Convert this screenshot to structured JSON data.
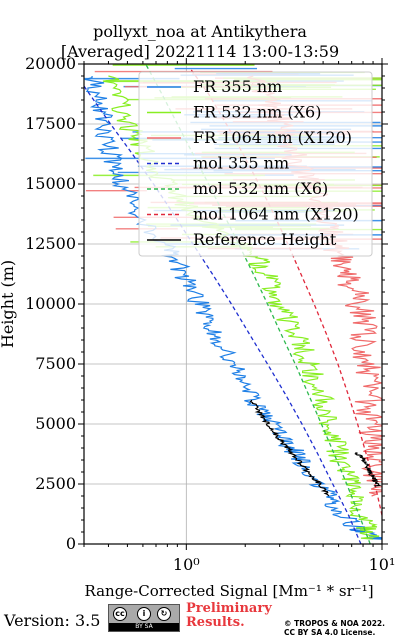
{
  "chart_data": {
    "type": "line",
    "title": "pollyxt_noa at Antikythera",
    "subtitle": "[Averaged] 20221114 13:00-13:59",
    "xlabel": "Range-Corrected Signal [Mm⁻¹ * sr⁻¹]",
    "ylabel": "Height (m)",
    "xscale": "log",
    "xlim": [
      0.3,
      10
    ],
    "ylim": [
      0,
      20000
    ],
    "grid": true,
    "legend_position": "top-right",
    "x_tick_labels": [
      "10⁰",
      "10¹"
    ],
    "x_tick_values": [
      1,
      10
    ],
    "y_ticks": [
      0,
      2500,
      5000,
      7500,
      10000,
      12500,
      15000,
      17500,
      20000
    ],
    "series": [
      {
        "name": "FR 355 nm",
        "color": "#1e7fe6",
        "style": "solid",
        "noisy": true,
        "points": [
          [
            9.5,
            200
          ],
          [
            7.5,
            600
          ],
          [
            6.0,
            1400
          ],
          [
            5.3,
            2000
          ],
          [
            4.5,
            2800
          ],
          [
            3.8,
            3600
          ],
          [
            3.2,
            4300
          ],
          [
            2.7,
            5000
          ],
          [
            2.3,
            5800
          ],
          [
            2.0,
            6600
          ],
          [
            1.75,
            7400
          ],
          [
            1.55,
            8200
          ],
          [
            1.35,
            9000
          ],
          [
            1.2,
            9800
          ],
          [
            1.05,
            10700
          ],
          [
            0.92,
            11500
          ],
          [
            0.8,
            12300
          ],
          [
            0.6,
            13500
          ],
          [
            0.5,
            14500
          ],
          [
            0.45,
            15500
          ],
          [
            0.4,
            16500
          ],
          [
            0.38,
            17500
          ],
          [
            0.35,
            18500
          ],
          [
            0.33,
            19500
          ]
        ]
      },
      {
        "name": "FR 532 nm (X6)",
        "color": "#88ee22",
        "style": "solid",
        "noisy": true,
        "points": [
          [
            9.0,
            200
          ],
          [
            8.3,
            800
          ],
          [
            7.6,
            1600
          ],
          [
            7.0,
            2300
          ],
          [
            6.5,
            3000
          ],
          [
            6.0,
            3800
          ],
          [
            5.6,
            4700
          ],
          [
            5.2,
            5600
          ],
          [
            4.7,
            6500
          ],
          [
            4.3,
            7400
          ],
          [
            3.9,
            8200
          ],
          [
            3.5,
            9000
          ],
          [
            3.1,
            9800
          ],
          [
            2.8,
            10700
          ],
          [
            2.5,
            11500
          ],
          [
            2.2,
            12000
          ],
          [
            1.9,
            12500
          ],
          [
            1.2,
            13500
          ],
          [
            0.9,
            14500
          ],
          [
            0.7,
            15500
          ],
          [
            0.6,
            16500
          ],
          [
            0.5,
            17500
          ],
          [
            0.45,
            18500
          ],
          [
            0.4,
            19500
          ]
        ]
      },
      {
        "name": "FR 1064 nm (X120)",
        "color": "#f06b6b",
        "style": "solid",
        "noisy": true,
        "points": [
          [
            9.8,
            2000
          ],
          [
            9.5,
            3000
          ],
          [
            9.2,
            4000
          ],
          [
            8.8,
            5000
          ],
          [
            8.6,
            6000
          ],
          [
            8.5,
            7000
          ],
          [
            8.3,
            8000
          ],
          [
            8.0,
            9000
          ],
          [
            7.6,
            10000
          ],
          [
            7.0,
            10800
          ],
          [
            6.5,
            11500
          ],
          [
            6.0,
            12200
          ],
          [
            5.5,
            12800
          ],
          [
            5.0,
            13500
          ],
          [
            4.5,
            14500
          ],
          [
            4.0,
            15500
          ],
          [
            3.5,
            16500
          ],
          [
            3.0,
            17500
          ],
          [
            2.6,
            18500
          ],
          [
            2.2,
            19500
          ]
        ]
      },
      {
        "name": "mol 355 nm",
        "color": "#1f2fd0",
        "style": "dashed",
        "noisy": false,
        "points": [
          [
            7.8,
            0
          ],
          [
            6.7,
            1250
          ],
          [
            5.6,
            2500
          ],
          [
            4.7,
            3750
          ],
          [
            3.9,
            5000
          ],
          [
            3.2,
            6250
          ],
          [
            2.6,
            7500
          ],
          [
            2.1,
            8750
          ],
          [
            1.7,
            10000
          ],
          [
            1.36,
            11250
          ],
          [
            1.08,
            12500
          ],
          [
            0.86,
            13750
          ],
          [
            0.68,
            15000
          ],
          [
            0.53,
            16250
          ],
          [
            0.41,
            17500
          ],
          [
            0.32,
            18750
          ],
          [
            0.25,
            20000
          ]
        ]
      },
      {
        "name": "mol 532 nm (X6)",
        "color": "#2eb84e",
        "style": "dashed",
        "noisy": false,
        "points": [
          [
            8.7,
            0
          ],
          [
            7.6,
            1250
          ],
          [
            6.6,
            2500
          ],
          [
            5.7,
            3750
          ],
          [
            4.9,
            5000
          ],
          [
            4.2,
            6250
          ],
          [
            3.6,
            7500
          ],
          [
            3.05,
            8750
          ],
          [
            2.6,
            10000
          ],
          [
            2.2,
            11250
          ],
          [
            1.85,
            12500
          ],
          [
            1.55,
            13750
          ],
          [
            1.3,
            15000
          ],
          [
            1.08,
            16250
          ],
          [
            0.9,
            17500
          ],
          [
            0.75,
            18750
          ],
          [
            0.62,
            20000
          ]
        ]
      },
      {
        "name": "mol 1064 nm (X120)",
        "color": "#e0283b",
        "style": "dashed",
        "noisy": false,
        "points": [
          [
            10.0,
            1200
          ],
          [
            9.2,
            2500
          ],
          [
            8.3,
            3750
          ],
          [
            7.5,
            5000
          ],
          [
            6.7,
            6250
          ],
          [
            5.95,
            7500
          ],
          [
            5.2,
            8750
          ],
          [
            4.5,
            10000
          ],
          [
            3.85,
            11250
          ],
          [
            3.3,
            12500
          ],
          [
            2.8,
            13750
          ],
          [
            2.35,
            15000
          ],
          [
            1.95,
            16250
          ],
          [
            1.6,
            17500
          ],
          [
            1.3,
            18750
          ],
          [
            1.05,
            19800
          ]
        ]
      },
      {
        "name": "Reference Height",
        "color": "#000000",
        "style": "solid",
        "noisy": true,
        "segments": [
          [
            [
              5.3,
              2000
            ],
            [
              4.8,
              2500
            ],
            [
              4.2,
              3000
            ],
            [
              3.7,
              3500
            ],
            [
              3.3,
              4000
            ],
            [
              2.9,
              4500
            ],
            [
              2.6,
              5000
            ],
            [
              2.35,
              5500
            ],
            [
              2.15,
              6000
            ]
          ],
          [
            [
              9.5,
              2400
            ],
            [
              9.1,
              2700
            ],
            [
              8.7,
              3000
            ],
            [
              8.4,
              3300
            ],
            [
              8.0,
              3600
            ],
            [
              7.3,
              3800
            ]
          ]
        ]
      }
    ]
  },
  "footer": {
    "version": "Version: 3.5",
    "preliminary_line1": "Preliminary",
    "preliminary_line2": "Results.",
    "copyright_line1": "© TROPOS & NOA 2022.",
    "copyright_line2": "CC BY SA 4.0 License.",
    "badge_text": "BY    SA"
  },
  "colors": {
    "fr355": "#1e7fe6",
    "fr532": "#88ee22",
    "fr1064": "#f06b6b",
    "mol355": "#1f2fd0",
    "mol532": "#2eb84e",
    "mol1064": "#e0283b",
    "preliminary": "#e8383d"
  }
}
